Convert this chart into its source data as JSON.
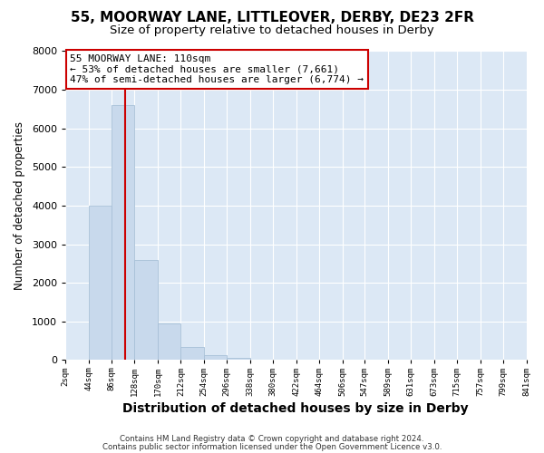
{
  "title1": "55, MOORWAY LANE, LITTLEOVER, DERBY, DE23 2FR",
  "title2": "Size of property relative to detached houses in Derby",
  "xlabel": "Distribution of detached houses by size in Derby",
  "ylabel": "Number of detached properties",
  "bar_edges": [
    2,
    44,
    86,
    128,
    170,
    212,
    254,
    296,
    338,
    380,
    422,
    464,
    506,
    547,
    589,
    631,
    673,
    715,
    757,
    799,
    841
  ],
  "bar_heights": [
    0,
    4000,
    6600,
    2600,
    950,
    330,
    130,
    60,
    0,
    0,
    0,
    0,
    0,
    0,
    0,
    0,
    0,
    0,
    0,
    0
  ],
  "bar_color": "#c8d9ec",
  "bar_edgecolor": "#a8c0d8",
  "property_line_x": 110,
  "property_line_color": "#cc0000",
  "ylim": [
    0,
    8000
  ],
  "yticks": [
    0,
    1000,
    2000,
    3000,
    4000,
    5000,
    6000,
    7000,
    8000
  ],
  "xtick_labels": [
    "2sqm",
    "44sqm",
    "86sqm",
    "128sqm",
    "170sqm",
    "212sqm",
    "254sqm",
    "296sqm",
    "338sqm",
    "380sqm",
    "422sqm",
    "464sqm",
    "506sqm",
    "547sqm",
    "589sqm",
    "631sqm",
    "673sqm",
    "715sqm",
    "757sqm",
    "799sqm",
    "841sqm"
  ],
  "annotation_title": "55 MOORWAY LANE: 110sqm",
  "annotation_line1": "← 53% of detached houses are smaller (7,661)",
  "annotation_line2": "47% of semi-detached houses are larger (6,774) →",
  "annotation_box_facecolor": "#ffffff",
  "annotation_box_edgecolor": "#cc0000",
  "footnote1": "Contains HM Land Registry data © Crown copyright and database right 2024.",
  "footnote2": "Contains public sector information licensed under the Open Government Licence v3.0.",
  "fig_background_color": "#ffffff",
  "plot_background_color": "#dce8f5",
  "grid_color": "#ffffff",
  "title1_fontsize": 11,
  "title2_fontsize": 9.5,
  "xlabel_fontsize": 10,
  "ylabel_fontsize": 8.5
}
